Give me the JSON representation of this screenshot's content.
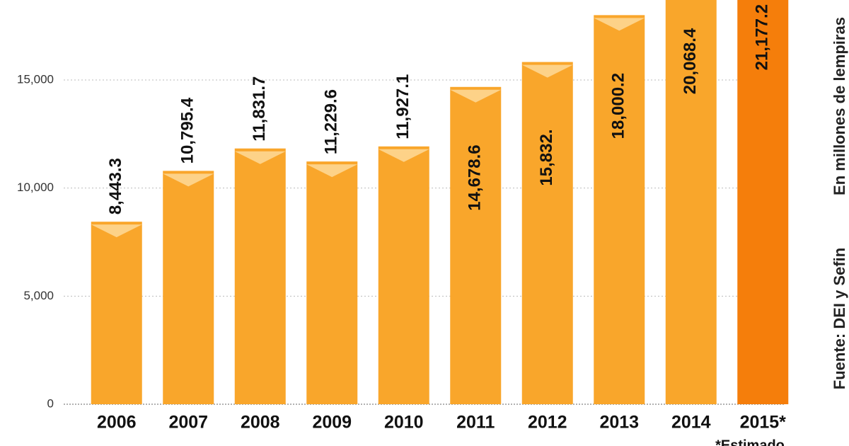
{
  "chart_data": {
    "type": "bar",
    "categories": [
      "2006",
      "2007",
      "2008",
      "2009",
      "2010",
      "2011",
      "2012",
      "2013",
      "2014",
      "2015*"
    ],
    "values": [
      8443.3,
      10795.4,
      11831.7,
      11229.6,
      11927.1,
      14678.6,
      15832,
      18000.2,
      20068.4,
      21177.2
    ],
    "value_labels": [
      "8,443.3",
      "10,795.4",
      "11,831.7",
      "11,229.6",
      "11,927.1",
      "14,678.6",
      "15,832.",
      "18,000.2",
      "20,068.4",
      "21,177.2"
    ],
    "colors": [
      "#f9a62b",
      "#f9a62b",
      "#f9a62b",
      "#f9a62b",
      "#f9a62b",
      "#f9a62b",
      "#f9a62b",
      "#f9a62b",
      "#f9a62b",
      "#f57e0b"
    ],
    "ylim": [
      0,
      18700
    ],
    "yticks": [
      0,
      {
        "value": 5000,
        "label": "5,000"
      },
      {
        "value": 10000,
        "label": "10,000"
      },
      {
        "value": 15000,
        "label": "15,000"
      }
    ],
    "grid": true,
    "unit_note": "En millones de lempiras",
    "source": "Fuente: DEI y Sefin",
    "footnote": "*Estimado"
  }
}
